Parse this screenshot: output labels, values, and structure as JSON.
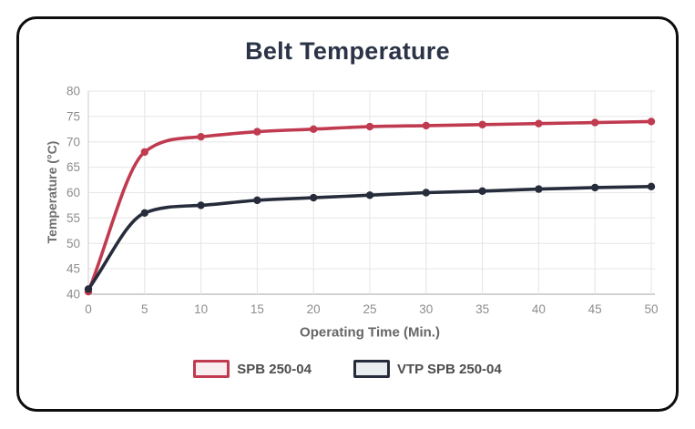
{
  "chart_data": {
    "type": "line",
    "title": "Belt Temperature",
    "xlabel": "Operating Time (Min.)",
    "ylabel": "Temperature (°C)",
    "x": [
      0,
      5,
      10,
      15,
      20,
      25,
      30,
      35,
      40,
      45,
      50
    ],
    "xlim": [
      0,
      50
    ],
    "ylim": [
      40,
      80
    ],
    "y_ticks": [
      40,
      45,
      50,
      55,
      60,
      65,
      70,
      75,
      80
    ],
    "grid": true,
    "legend_position": "bottom",
    "line_style": "smooth-monotone with round point markers",
    "series": [
      {
        "name": "SPB 250-04",
        "color": "#c03a50",
        "swatch_fill": "#f9edef",
        "values": [
          40.5,
          68,
          71,
          72,
          72.5,
          73,
          73.2,
          73.4,
          73.6,
          73.8,
          74
        ]
      },
      {
        "name": "VTP SPB 250-04",
        "color": "#262c3b",
        "swatch_fill": "#e9edf0",
        "values": [
          41,
          56,
          57.5,
          58.5,
          59,
          59.5,
          60,
          60.3,
          60.7,
          61,
          61.2
        ]
      }
    ],
    "axis_colors": {
      "gridline": "#e6e6e6",
      "baseline": "#c3c3c3",
      "y_axis_line": "#cfcfcf",
      "tick_text": "#8d8d8d"
    }
  }
}
